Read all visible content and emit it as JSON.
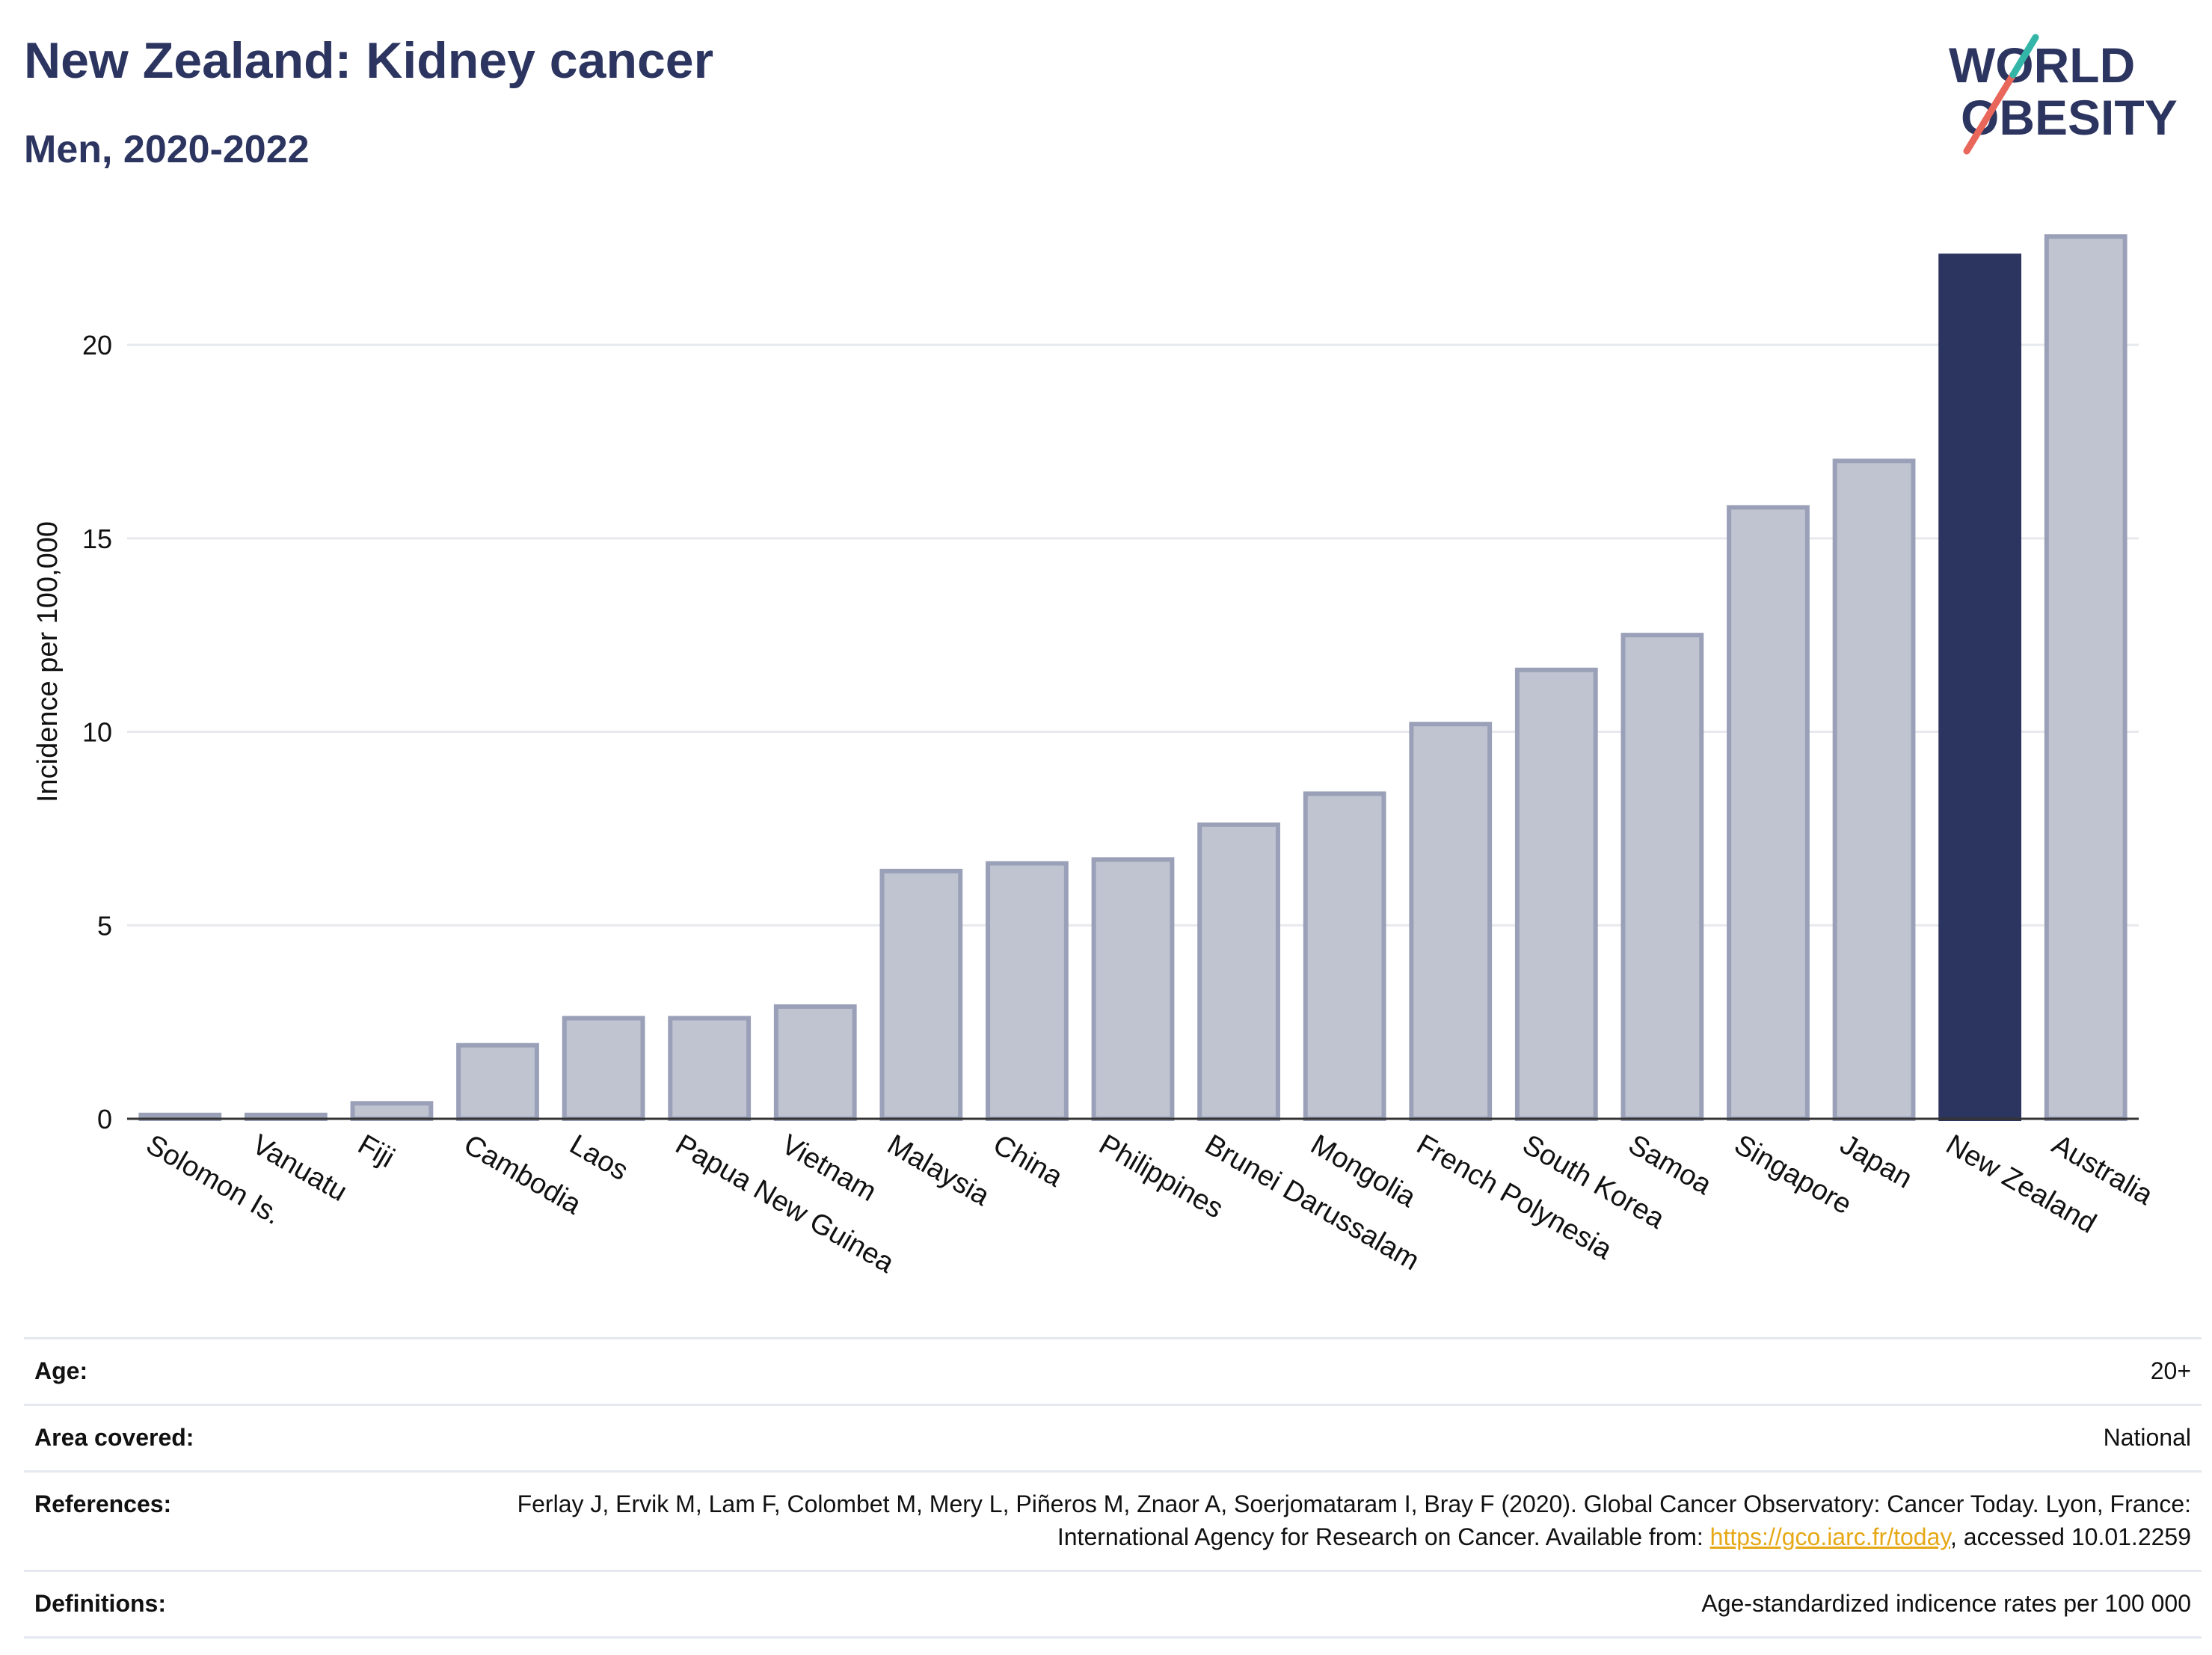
{
  "header": {
    "title": "New Zealand: Kidney cancer",
    "subtitle": "Men, 2020-2022"
  },
  "logo": {
    "line1": "WORLD",
    "line2": "OBESITY",
    "colors": {
      "text": "#2c3560",
      "slash_red": "#e8665a",
      "slash_teal": "#33b5a8"
    }
  },
  "chart_data": {
    "type": "bar",
    "title": "New Zealand: Kidney cancer",
    "subtitle": "Men, 2020-2022",
    "xlabel": "",
    "ylabel": "Incidence per 100,000",
    "categories": [
      "Solomon Is.",
      "Vanuatu",
      "Fiji",
      "Cambodia",
      "Laos",
      "Papua New Guinea",
      "Vietnam",
      "Malaysia",
      "China",
      "Philippines",
      "Brunei Darussalam",
      "Mongolia",
      "French Polynesia",
      "South Korea",
      "Samoa",
      "Singapore",
      "Japan",
      "New Zealand",
      "Australia"
    ],
    "values": [
      0.1,
      0.1,
      0.4,
      1.9,
      2.6,
      2.6,
      2.9,
      6.4,
      6.6,
      6.7,
      7.6,
      8.4,
      10.2,
      11.6,
      12.5,
      15.8,
      17.0,
      22.3,
      22.8
    ],
    "highlight": "New Zealand",
    "yticks": [
      0,
      5,
      10,
      15,
      20
    ],
    "ylim": [
      0,
      23.5
    ],
    "grid": true,
    "colors": {
      "bar": "#c0c4d1",
      "bar_border": "#9aa0b8",
      "highlight": "#2c3560",
      "grid": "#e8e9ee",
      "axis": "#333333"
    }
  },
  "meta": {
    "age_label": "Age:",
    "age_value": "20+",
    "area_label": "Area covered:",
    "area_value": "National",
    "refs_label": "References:",
    "refs_text_1": "Ferlay J, Ervik M, Lam F, Colombet M, Mery L, Piñeros M, Znaor A, Soerjomataram I, Bray F (2020). Global Cancer Observatory: Cancer Today. Lyon, France: International Agency for Research on Cancer. Available from: ",
    "refs_link": "https://gco.iarc.fr/today",
    "refs_text_2": ", accessed 10.01.2259",
    "defs_label": "Definitions:",
    "defs_value": "Age-standardized indicence rates per 100 000"
  }
}
